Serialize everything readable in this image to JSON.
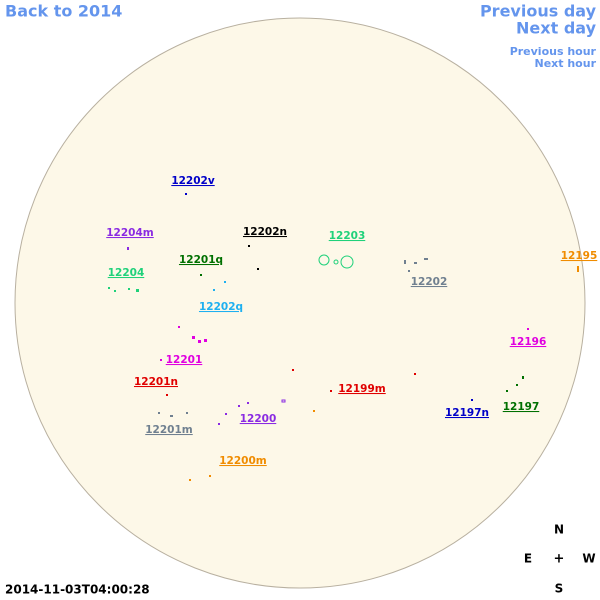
{
  "nav": {
    "back": "Back to 2014",
    "previous_day": "Previous day",
    "next_day": "Next day",
    "previous_hour": "Previous hour",
    "next_hour": "Next hour"
  },
  "timestamp": "2014-11-03T04:00:28",
  "compass": {
    "north": "N",
    "east": "E",
    "center": "+",
    "west": "W",
    "south": "S"
  },
  "regions": [
    {
      "label": "12202v",
      "color": "#0000c8"
    },
    {
      "label": "12204m",
      "color": "#8a2be2"
    },
    {
      "label": "12202n",
      "color": "#000000"
    },
    {
      "label": "12203",
      "color": "#1fd17a"
    },
    {
      "label": "12201q",
      "color": "#007000"
    },
    {
      "label": "12195",
      "color": "#f08c00"
    },
    {
      "label": "12204",
      "color": "#1fd17a"
    },
    {
      "label": "12202",
      "color": "#708090"
    },
    {
      "label": "12202q",
      "color": "#1fb0f0"
    },
    {
      "label": "12196",
      "color": "#e000e0"
    },
    {
      "label": "12201",
      "color": "#e000e0"
    },
    {
      "label": "12201n",
      "color": "#e00000"
    },
    {
      "label": "12199m",
      "color": "#e00000"
    },
    {
      "label": "12197n",
      "color": "#0000c8"
    },
    {
      "label": "12197",
      "color": "#007000"
    },
    {
      "label": "12201m",
      "color": "#708090"
    },
    {
      "label": "12200",
      "color": "#8a2be2"
    },
    {
      "label": "12200m",
      "color": "#f08c00"
    }
  ]
}
